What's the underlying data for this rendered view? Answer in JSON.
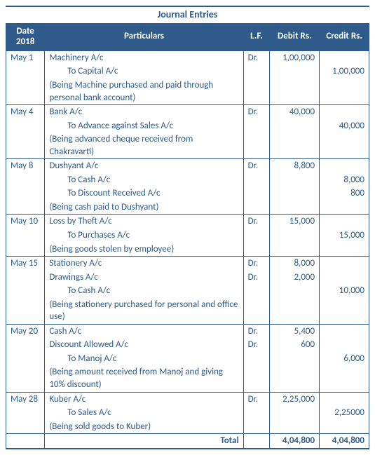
{
  "title": "Journal Entries",
  "columns": {
    "date": "Date 2018",
    "particulars": "Particulars",
    "lf": "L.F.",
    "debit": "Debit Rs.",
    "credit": "Credit Rs."
  },
  "colors": {
    "header_bg": "#2e5b8a",
    "header_text": "#ffffff",
    "body_text": "#2e5b8a",
    "border": "#2e5b8a",
    "background": "#ffffff"
  },
  "entries": [
    {
      "date": "May 1",
      "lines": [
        {
          "text": "Machinery A/c",
          "dr": "Dr.",
          "debit": "1,00,000",
          "credit": ""
        },
        {
          "text": "To Capital A/c",
          "indent": true,
          "debit": "",
          "credit": "1,00,000"
        },
        {
          "text": "(Being Machine purchased and paid through personal bank account)",
          "narration": true
        }
      ]
    },
    {
      "date": "May 4",
      "lines": [
        {
          "text": "Bank A/c",
          "dr": "Dr.",
          "debit": "40,000",
          "credit": ""
        },
        {
          "text": "To Advance against Sales A/c",
          "indent": true,
          "debit": "",
          "credit": "40,000"
        },
        {
          "text": "(Being advanced cheque received from Chakravarti)",
          "narration": true
        }
      ]
    },
    {
      "date": "May 8",
      "lines": [
        {
          "text": "Dushyant A/c",
          "dr": "Dr.",
          "debit": "8,800",
          "credit": ""
        },
        {
          "text": "To Cash A/c",
          "indent": true,
          "debit": "",
          "credit": "8,000"
        },
        {
          "text": "To Discount Received A/c",
          "indent": true,
          "debit": "",
          "credit": "800"
        },
        {
          "text": "(Being cash paid to Dushyant)",
          "narration": true
        }
      ]
    },
    {
      "date": "May 10",
      "lines": [
        {
          "text": "Loss by Theft A/c",
          "dr": "Dr.",
          "debit": "15,000",
          "credit": ""
        },
        {
          "text": "To Purchases A/c",
          "indent": true,
          "debit": "",
          "credit": "15,000"
        },
        {
          "text": "(Being goods stolen by employee)",
          "narration": true
        }
      ]
    },
    {
      "date": "May 15",
      "lines": [
        {
          "text": "Stationery A/c",
          "dr": "Dr.",
          "debit": "8,000",
          "credit": ""
        },
        {
          "text": "Drawings A/c",
          "dr": "Dr.",
          "debit": "2,000",
          "credit": ""
        },
        {
          "text": "To Cash A/c",
          "indent": true,
          "debit": "",
          "credit": "10,000"
        },
        {
          "text": "(Being stationery purchased for personal and office use)",
          "narration": true
        }
      ]
    },
    {
      "date": "May 20",
      "lines": [
        {
          "text": "Cash A/c",
          "dr": "Dr.",
          "debit": "5,400",
          "credit": ""
        },
        {
          "text": "Discount Allowed A/c",
          "dr": "Dr.",
          "debit": "600",
          "credit": ""
        },
        {
          "text": "To Manoj A/c",
          "indent": true,
          "debit": "",
          "credit": "6,000"
        },
        {
          "text": "(Being amount received from Manoj and giving 10% discount)",
          "narration": true
        }
      ]
    },
    {
      "date": "May 28",
      "lines": [
        {
          "text": "Kuber A/c",
          "dr": "Dr.",
          "debit": "2,25,000",
          "credit": ""
        },
        {
          "text": "To Sales A/c",
          "indent": true,
          "debit": "",
          "credit": "2,25000"
        },
        {
          "text": "(Being sold goods to Kuber)",
          "narration": true
        }
      ]
    }
  ],
  "total": {
    "label": "Total",
    "debit": "4,04,800",
    "credit": "4,04,800"
  }
}
